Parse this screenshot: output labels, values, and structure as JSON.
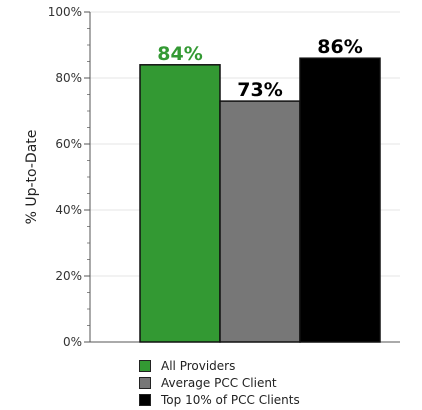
{
  "chart_data": {
    "type": "bar",
    "categories": [
      "All Providers",
      "Average PCC Client",
      "Top 10% of PCC Clients"
    ],
    "values": [
      84,
      73,
      86
    ],
    "value_labels": [
      "84%",
      "73%",
      "86%"
    ],
    "colors": [
      "#339933",
      "#777777",
      "#000000"
    ],
    "label_colors": [
      "#339933",
      "#000000",
      "#000000"
    ],
    "title": "",
    "xlabel": "",
    "ylabel": "% Up-to-Date",
    "ylim": [
      0,
      100
    ],
    "yticks": [
      0,
      20,
      40,
      60,
      80,
      100
    ],
    "ytick_labels": [
      "0%",
      "20%",
      "40%",
      "60%",
      "80%",
      "100%"
    ],
    "grid": true,
    "legend_position": "bottom"
  }
}
